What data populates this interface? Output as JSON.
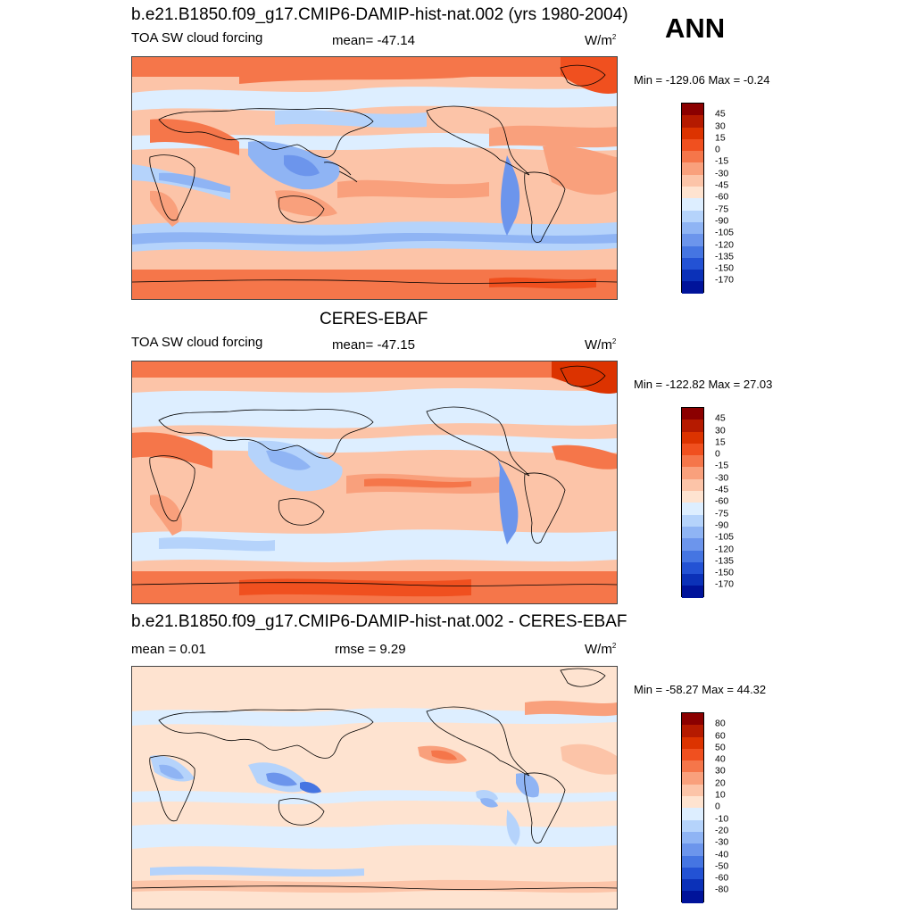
{
  "header": {
    "title": "b.e21.B1850.f09_g17.CMIP6-DAMIP-hist-nat.002 (yrs 1980-2004)",
    "season": "ANN"
  },
  "panels": [
    {
      "id": "model",
      "title": "",
      "left_label": "TOA SW cloud forcing",
      "center_label": "mean= -47.14",
      "units": "W/m",
      "units_sup": "2",
      "minmax": "Min = -129.06 Max =  -0.24",
      "colorbar": {
        "colors": [
          "#8b0000",
          "#b51a00",
          "#dc3300",
          "#f0501f",
          "#f5764a",
          "#f9a07c",
          "#fcc4a8",
          "#fee3d0",
          "#ddeeff",
          "#b5d3fb",
          "#8fb4f4",
          "#6c95ec",
          "#4575e2",
          "#2352d4",
          "#0b31b8",
          "#00139a"
        ],
        "labels": [
          "45",
          "30",
          "15",
          "0",
          "-15",
          "-30",
          "-45",
          "-60",
          "-75",
          "-90",
          "-105",
          "-120",
          "-135",
          "-150",
          "-170"
        ]
      }
    },
    {
      "id": "obs",
      "title": "CERES-EBAF",
      "left_label": "TOA SW cloud forcing",
      "center_label": "mean= -47.15",
      "units": "W/m",
      "units_sup": "2",
      "minmax": "Min = -122.82 Max =  27.03",
      "colorbar": {
        "colors": [
          "#8b0000",
          "#b51a00",
          "#dc3300",
          "#f0501f",
          "#f5764a",
          "#f9a07c",
          "#fcc4a8",
          "#fee3d0",
          "#ddeeff",
          "#b5d3fb",
          "#8fb4f4",
          "#6c95ec",
          "#4575e2",
          "#2352d4",
          "#0b31b8",
          "#00139a"
        ],
        "labels": [
          "45",
          "30",
          "15",
          "0",
          "-15",
          "-30",
          "-45",
          "-60",
          "-75",
          "-90",
          "-105",
          "-120",
          "-135",
          "-150",
          "-170"
        ]
      }
    },
    {
      "id": "diff",
      "title": "b.e21.B1850.f09_g17.CMIP6-DAMIP-hist-nat.002 - CERES-EBAF",
      "left_label": "mean =   0.01",
      "center_label": "rmse =   9.29",
      "units": "W/m",
      "units_sup": "2",
      "minmax": "Min = -58.27 Max =  44.32",
      "colorbar": {
        "colors": [
          "#8b0000",
          "#b51a00",
          "#dc3300",
          "#f0501f",
          "#f5764a",
          "#f9a07c",
          "#fcc4a8",
          "#fee3d0",
          "#ddeeff",
          "#b5d3fb",
          "#8fb4f4",
          "#6c95ec",
          "#4575e2",
          "#2352d4",
          "#0b31b8",
          "#00139a"
        ],
        "labels": [
          "80",
          "60",
          "50",
          "40",
          "30",
          "20",
          "10",
          "0",
          "-10",
          "-20",
          "-30",
          "-40",
          "-50",
          "-60",
          "-80"
        ]
      }
    }
  ]
}
